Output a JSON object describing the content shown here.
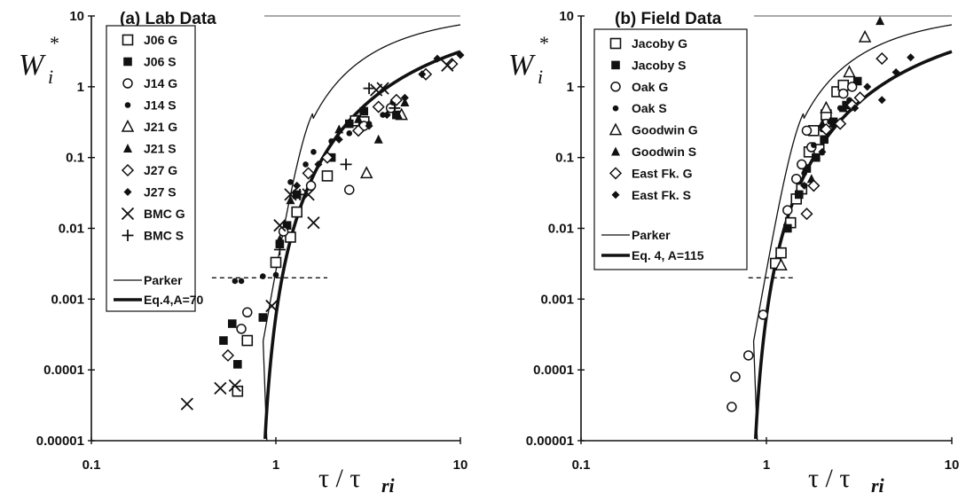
{
  "chart_data": [
    {
      "type": "scatter",
      "title": "(a) Lab Data",
      "xlabel": "τ / τri",
      "ylabel": "Wi*",
      "xscale": "log",
      "yscale": "log",
      "xlim": [
        0.1,
        10
      ],
      "ylim": [
        1e-05,
        10
      ],
      "x_ticks": [
        "0.1",
        "1",
        "10"
      ],
      "y_ticks": [
        "0.00001",
        "0.0001",
        "0.001",
        "0.01",
        "0.1",
        "1",
        "10"
      ],
      "legend_position": "left",
      "reference_level": {
        "y": 0.002,
        "x_range": [
          0.45,
          1.9
        ],
        "style": "dashed"
      },
      "series": [
        {
          "name": "J06 G",
          "marker": "square-open",
          "points": [
            [
              0.62,
              5e-05
            ],
            [
              0.7,
              0.00026
            ],
            [
              1.0,
              0.0033
            ],
            [
              1.2,
              0.0075
            ],
            [
              1.3,
              0.017
            ],
            [
              1.9,
              0.055
            ],
            [
              2.7,
              0.33
            ],
            [
              3.0,
              0.32
            ]
          ]
        },
        {
          "name": "J06 S",
          "marker": "square-filled",
          "points": [
            [
              0.52,
              0.00026
            ],
            [
              0.58,
              0.00045
            ],
            [
              0.62,
              0.00012
            ],
            [
              0.85,
              0.00055
            ],
            [
              1.05,
              0.006
            ],
            [
              1.15,
              0.011
            ],
            [
              1.3,
              0.03
            ],
            [
              2.0,
              0.1
            ],
            [
              2.5,
              0.3
            ],
            [
              3.0,
              0.45
            ],
            [
              4.5,
              0.4
            ]
          ]
        },
        {
          "name": "J14 G",
          "marker": "circle-open",
          "points": [
            [
              0.65,
              0.00038
            ],
            [
              0.7,
              0.00065
            ],
            [
              1.1,
              0.009
            ],
            [
              1.55,
              0.04
            ],
            [
              2.5,
              0.035
            ],
            [
              3.0,
              0.28
            ],
            [
              4.2,
              0.5
            ]
          ]
        },
        {
          "name": "J14 S",
          "marker": "circle-filled",
          "points": [
            [
              0.6,
              0.0018
            ],
            [
              0.65,
              0.0018
            ],
            [
              0.85,
              0.0021
            ],
            [
              1.0,
              0.0022
            ],
            [
              1.2,
              0.045
            ],
            [
              1.45,
              0.08
            ],
            [
              1.6,
              0.12
            ],
            [
              2.0,
              0.17
            ],
            [
              2.5,
              0.22
            ],
            [
              3.2,
              0.3
            ],
            [
              3.8,
              0.4
            ],
            [
              4.3,
              0.6
            ]
          ]
        },
        {
          "name": "J21 G",
          "marker": "triangle-open",
          "points": [
            [
              3.1,
              0.06
            ],
            [
              4.8,
              0.4
            ]
          ]
        },
        {
          "name": "J21 S",
          "marker": "triangle-filled",
          "points": [
            [
              1.05,
              0.007
            ],
            [
              1.2,
              0.025
            ],
            [
              2.2,
              0.25
            ],
            [
              2.8,
              0.35
            ],
            [
              3.6,
              0.18
            ],
            [
              4.6,
              0.4
            ],
            [
              5.0,
              0.6
            ]
          ]
        },
        {
          "name": "J27 G",
          "marker": "diamond-open",
          "points": [
            [
              0.55,
              0.00016
            ],
            [
              1.5,
              0.06
            ],
            [
              1.9,
              0.1
            ],
            [
              2.8,
              0.24
            ],
            [
              3.6,
              0.52
            ],
            [
              4.5,
              0.65
            ],
            [
              6.5,
              1.5
            ],
            [
              9.0,
              2.1
            ]
          ]
        },
        {
          "name": "J27 S",
          "marker": "diamond-filled",
          "points": [
            [
              1.3,
              0.04
            ],
            [
              1.7,
              0.08
            ],
            [
              2.2,
              0.18
            ],
            [
              3.2,
              0.28
            ],
            [
              4.0,
              0.4
            ],
            [
              5.0,
              0.7
            ],
            [
              6.2,
              1.5
            ],
            [
              7.5,
              2.5
            ],
            [
              10.0,
              2.8
            ]
          ]
        },
        {
          "name": "BMC G",
          "marker": "x",
          "points": [
            [
              0.33,
              3.3e-05
            ],
            [
              0.5,
              5.5e-05
            ],
            [
              0.6,
              6e-05
            ],
            [
              0.95,
              0.0008
            ],
            [
              1.05,
              0.011
            ],
            [
              1.2,
              0.03
            ],
            [
              1.5,
              0.03
            ],
            [
              1.6,
              0.012
            ],
            [
              3.5,
              0.9
            ],
            [
              3.8,
              0.95
            ],
            [
              8.5,
              2.0
            ]
          ]
        },
        {
          "name": "BMC S",
          "marker": "plus",
          "points": [
            [
              1.05,
              0.005
            ],
            [
              1.35,
              0.03
            ],
            [
              2.4,
              0.08
            ],
            [
              3.2,
              0.95
            ],
            [
              4.4,
              0.5
            ]
          ]
        },
        {
          "name": "Parker",
          "marker": "line-thin",
          "function": "parker",
          "x_range": [
            0.853,
            10
          ]
        },
        {
          "name": "Eq.4,A=70",
          "marker": "line-thick",
          "function": "eq4",
          "A": 70,
          "x_range": [
            0.5,
            10
          ]
        }
      ]
    },
    {
      "type": "scatter",
      "title": "(b) Field Data",
      "xlabel": "τ / τri",
      "ylabel": "Wi*",
      "xscale": "log",
      "yscale": "log",
      "xlim": [
        0.1,
        10
      ],
      "ylim": [
        1e-05,
        10
      ],
      "x_ticks": [
        "0.1",
        "1",
        "10"
      ],
      "y_ticks": [
        "0.00001",
        "0.0001",
        "0.001",
        "0.01",
        "0.1",
        "1",
        "10"
      ],
      "legend_position": "left",
      "reference_level": {
        "y": 0.002,
        "x_range": [
          0.8,
          1.4
        ],
        "style": "dashed"
      },
      "series": [
        {
          "name": "Jacoby G",
          "marker": "square-open",
          "points": [
            [
              1.12,
              0.0032
            ],
            [
              1.2,
              0.0045
            ],
            [
              1.35,
              0.012
            ],
            [
              1.45,
              0.026
            ],
            [
              1.55,
              0.036
            ],
            [
              1.7,
              0.12
            ],
            [
              1.8,
              0.24
            ],
            [
              1.92,
              0.13
            ],
            [
              2.1,
              0.4
            ],
            [
              2.4,
              0.85
            ],
            [
              2.6,
              1.05
            ]
          ]
        },
        {
          "name": "Jacoby S",
          "marker": "square-filled",
          "points": [
            [
              1.3,
              0.01
            ],
            [
              1.5,
              0.03
            ],
            [
              1.65,
              0.07
            ],
            [
              1.85,
              0.1
            ],
            [
              2.05,
              0.18
            ],
            [
              2.3,
              0.32
            ],
            [
              2.7,
              0.55
            ],
            [
              3.1,
              1.2
            ]
          ]
        },
        {
          "name": "Oak G",
          "marker": "circle-open",
          "points": [
            [
              0.65,
              3e-05
            ],
            [
              0.68,
              8e-05
            ],
            [
              0.8,
              0.00016
            ],
            [
              0.96,
              0.0006
            ],
            [
              1.3,
              0.018
            ],
            [
              1.45,
              0.05
            ],
            [
              1.55,
              0.08
            ],
            [
              1.65,
              0.24
            ],
            [
              1.75,
              0.14
            ],
            [
              2.1,
              0.3
            ],
            [
              2.6,
              0.8
            ],
            [
              2.9,
              1.0
            ]
          ]
        },
        {
          "name": "Oak S",
          "marker": "circle-filled",
          "points": [
            [
              1.6,
              0.06
            ],
            [
              1.8,
              0.15
            ],
            [
              2.0,
              0.25
            ],
            [
              2.2,
              0.32
            ],
            [
              2.5,
              0.5
            ],
            [
              2.8,
              0.65
            ]
          ]
        },
        {
          "name": "Goodwin G",
          "marker": "triangle-open",
          "points": [
            [
              1.2,
              0.003
            ],
            [
              2.1,
              0.5
            ],
            [
              2.8,
              1.6
            ],
            [
              3.4,
              5.0
            ]
          ]
        },
        {
          "name": "Goodwin S",
          "marker": "triangle-filled",
          "points": [
            [
              1.75,
              0.05
            ],
            [
              2.0,
              0.3
            ],
            [
              2.6,
              0.5
            ],
            [
              4.1,
              8.5
            ]
          ]
        },
        {
          "name": "East Fk. G",
          "marker": "diamond-open",
          "points": [
            [
              1.65,
              0.016
            ],
            [
              1.8,
              0.04
            ],
            [
              2.1,
              0.25
            ],
            [
              2.5,
              0.3
            ],
            [
              2.9,
              0.55
            ],
            [
              3.2,
              0.7
            ],
            [
              4.2,
              2.5
            ]
          ]
        },
        {
          "name": "East Fk. S",
          "marker": "diamond-filled",
          "points": [
            [
              1.6,
              0.04
            ],
            [
              2.0,
              0.12
            ],
            [
              2.3,
              0.28
            ],
            [
              3.0,
              0.5
            ],
            [
              3.5,
              1.0
            ],
            [
              4.2,
              0.65
            ],
            [
              5.0,
              1.6
            ],
            [
              6.0,
              2.6
            ]
          ]
        },
        {
          "name": "Parker",
          "marker": "line-thin",
          "function": "parker",
          "x_range": [
            0.853,
            10
          ]
        },
        {
          "name": "Eq. 4, A=115",
          "marker": "line-thick",
          "function": "eq4",
          "A": 115,
          "x_range": [
            0.5,
            10
          ]
        }
      ]
    }
  ]
}
